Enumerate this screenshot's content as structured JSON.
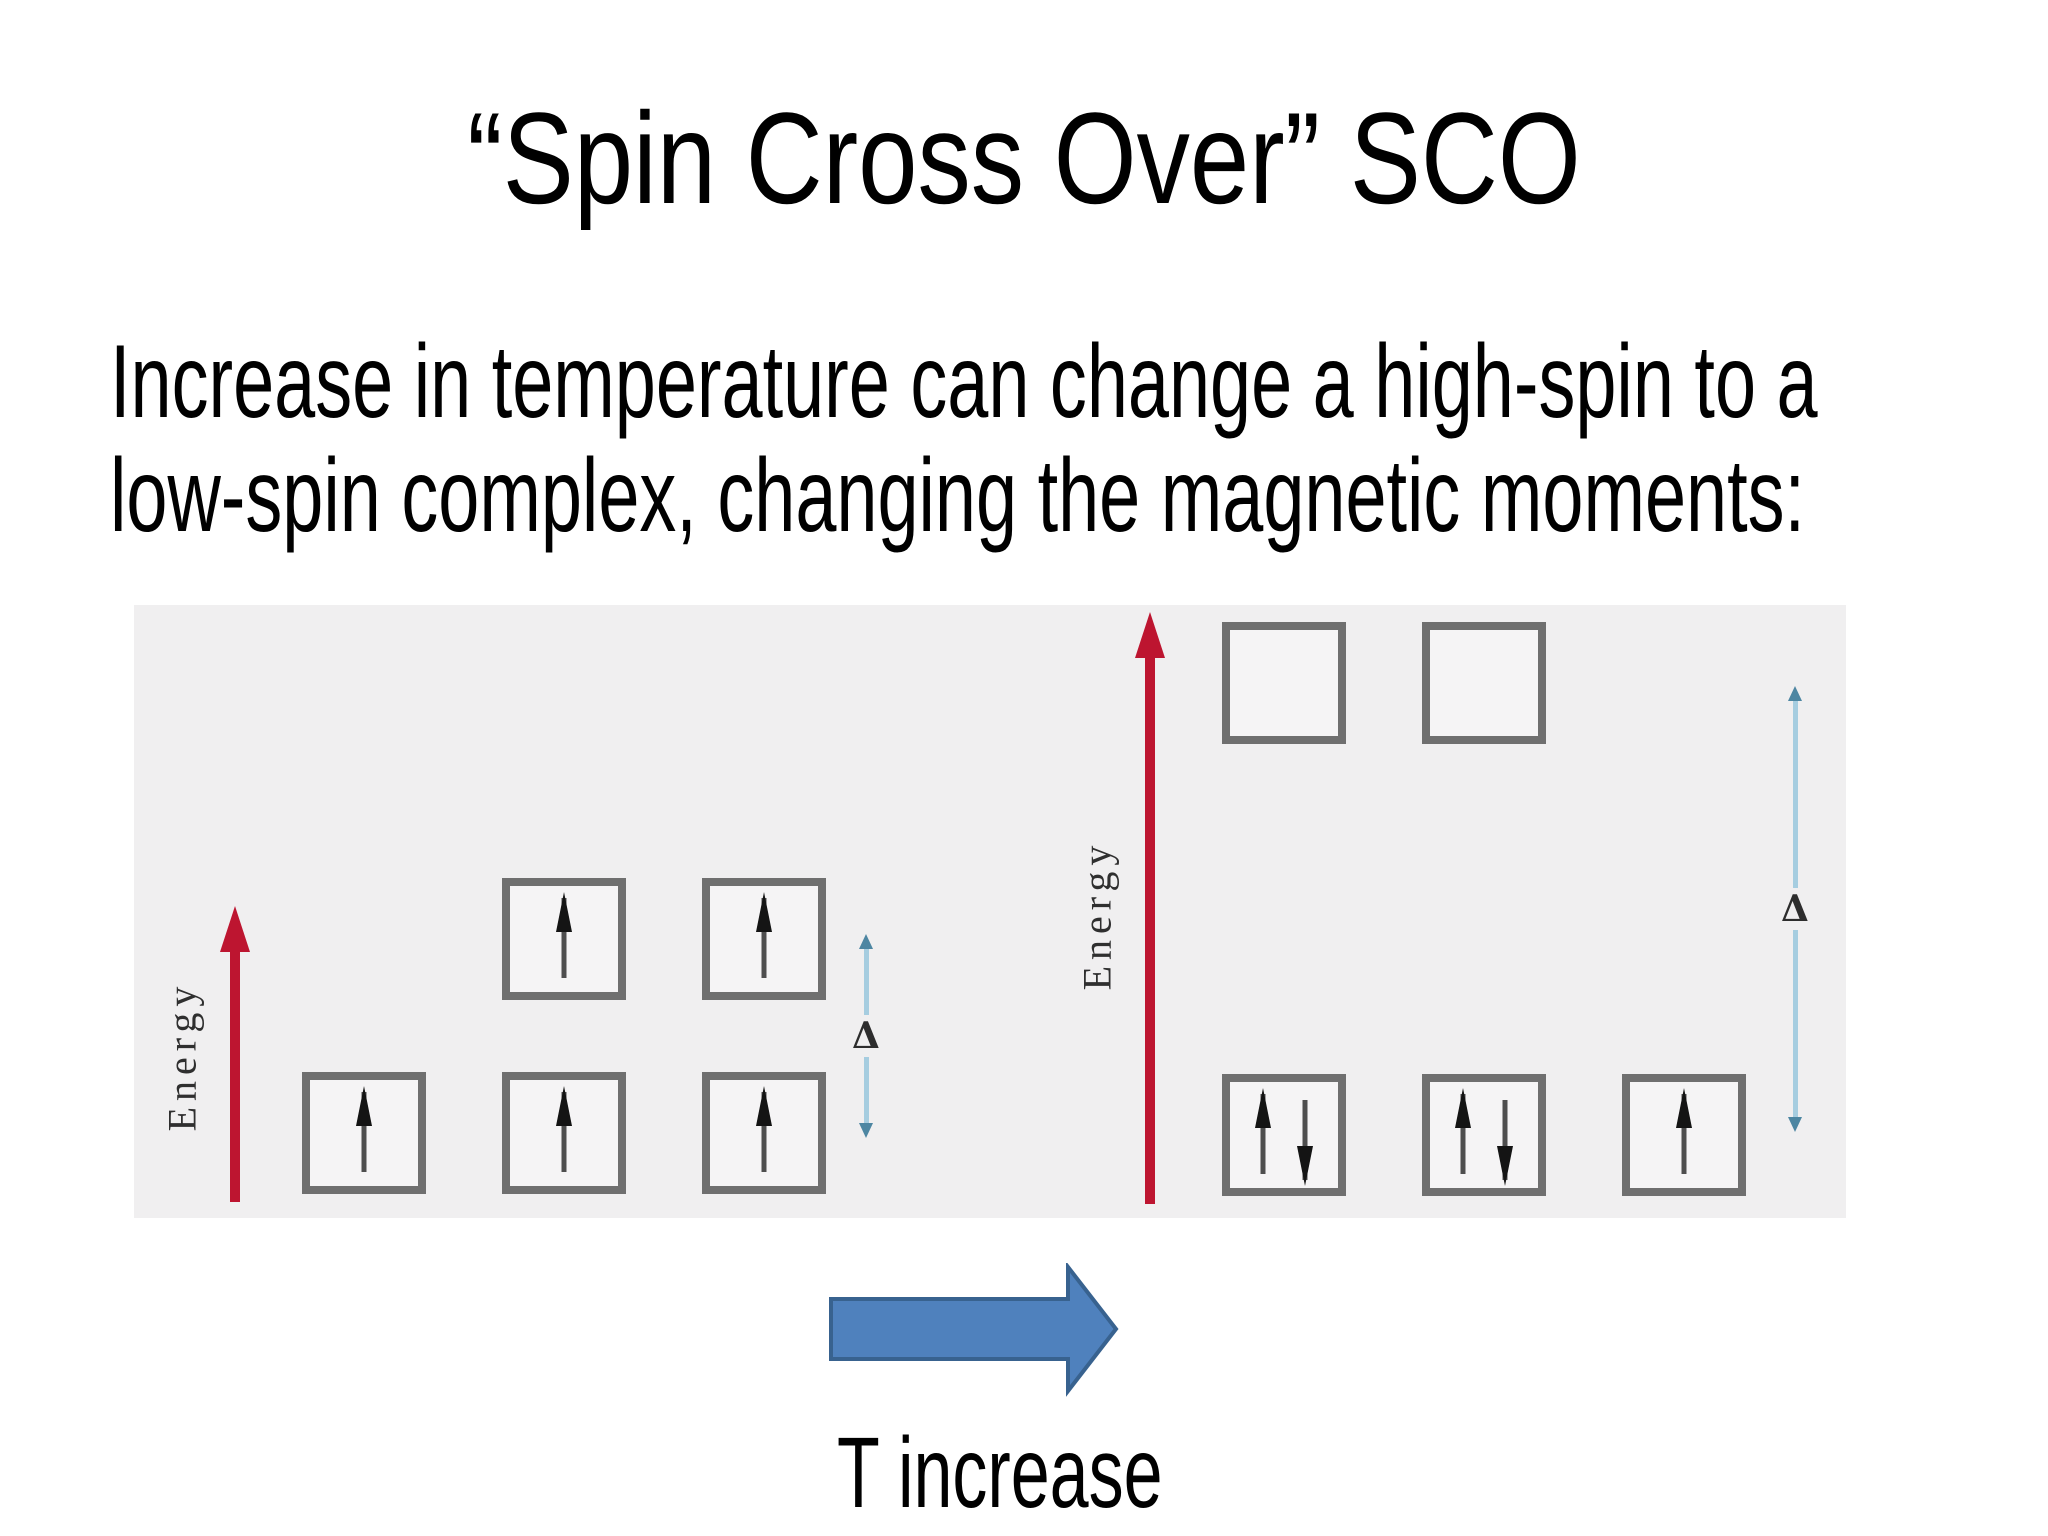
{
  "slide": {
    "title": "“Spin Cross Over” SCO",
    "body": {
      "line1": "Increase in temperature can change a high-spin to a",
      "line2": "low-spin complex, changing the magnetic moments:"
    },
    "t_increase": {
      "label": "T increase"
    }
  },
  "diagram": {
    "energy_label": "Energy",
    "delta_symbol": "Δ",
    "left": {
      "upper_boxes": [
        [
          "up"
        ],
        [
          "up"
        ]
      ],
      "lower_boxes": [
        [
          "up"
        ],
        [
          "up"
        ],
        [
          "up"
        ]
      ]
    },
    "right": {
      "upper_boxes": [
        [],
        []
      ],
      "lower_boxes": [
        [
          "up",
          "down"
        ],
        [
          "up",
          "down"
        ],
        [
          "up"
        ]
      ]
    },
    "colors": {
      "panel_bg": "#f0eff0",
      "energy_arrow_red": "#bd1530",
      "delta_line_blue": "#a6cde0",
      "delta_head_blue": "#4d86a2",
      "box_border_gray": "#6f6f6f",
      "spin_shaft_gray": "#4e4e4e",
      "spin_head_black": "#141414",
      "t_arrow_fill": "#4f81bd",
      "t_arrow_outline": "#38628f"
    }
  }
}
